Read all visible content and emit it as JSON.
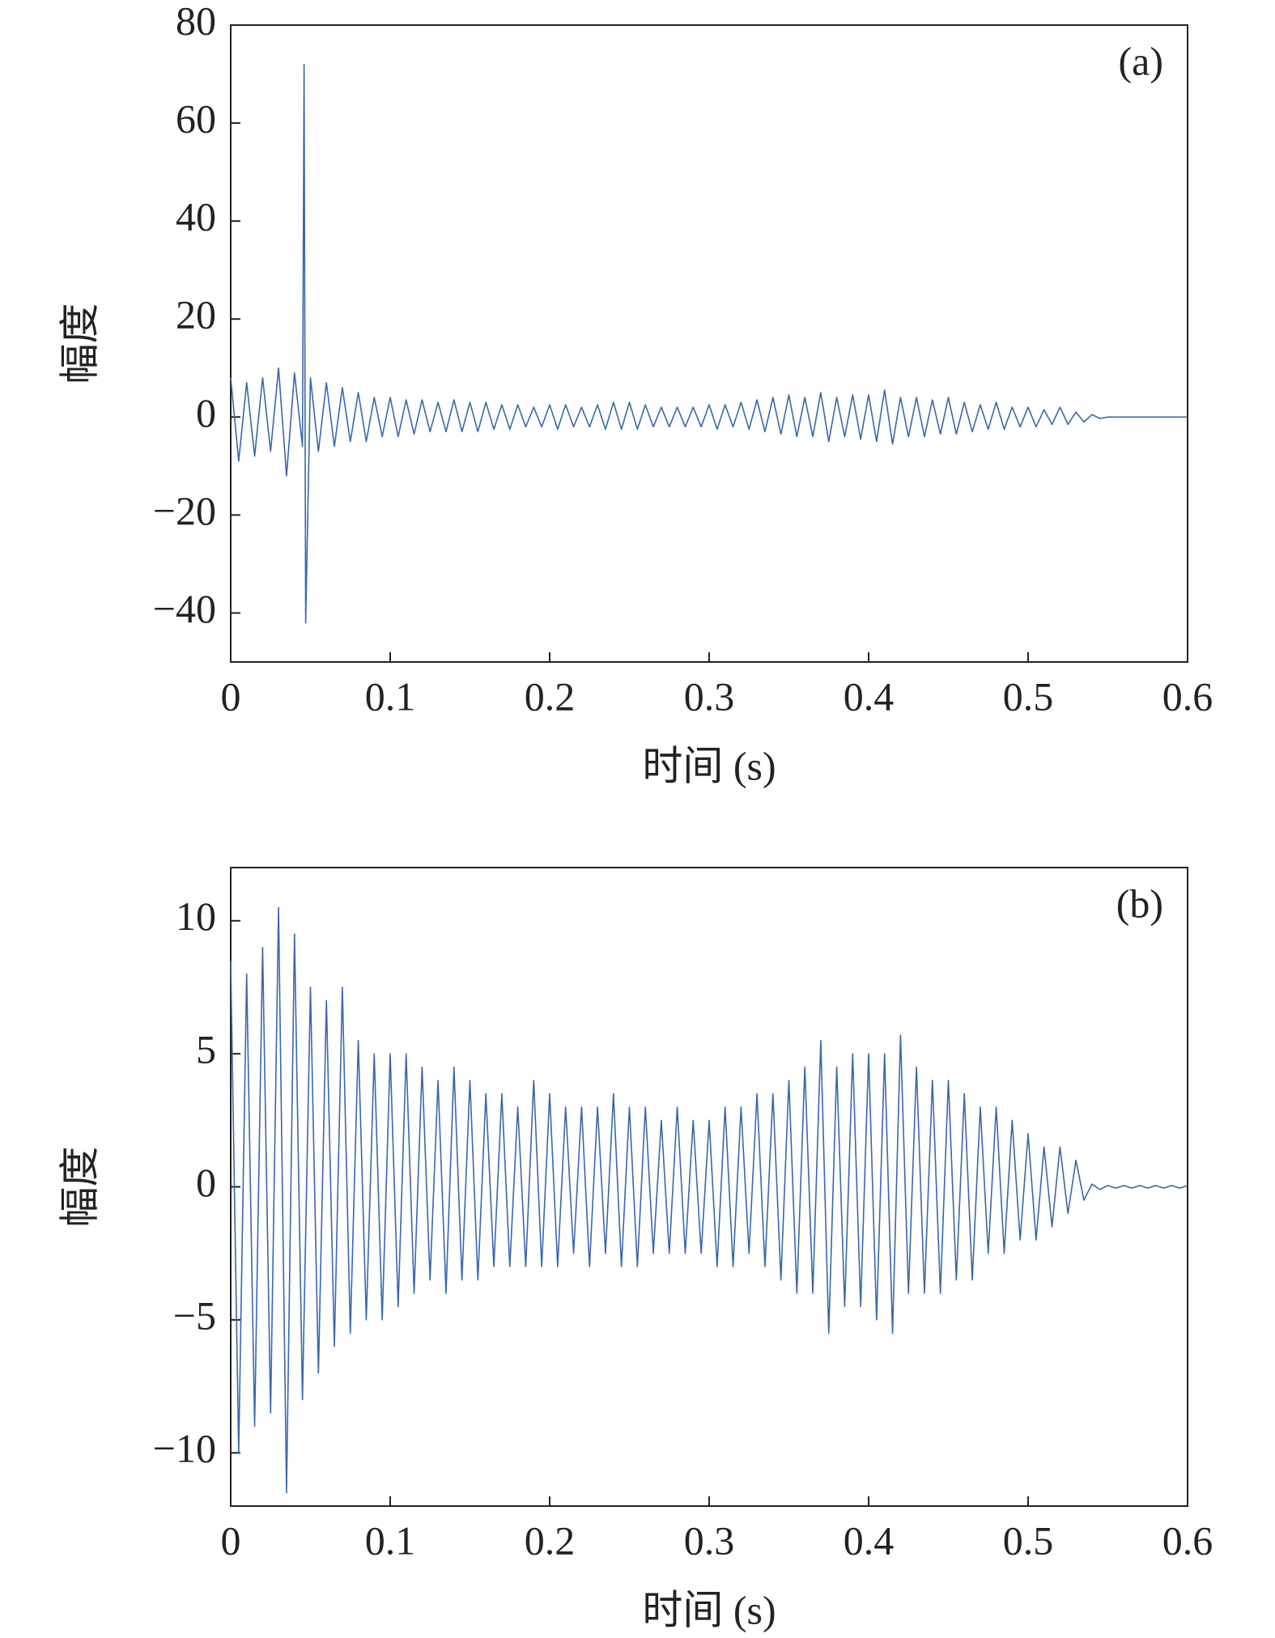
{
  "chart_data": [
    {
      "type": "line",
      "panel_label": "(a)",
      "x_label": "时间 (s)",
      "y_label": "幅度",
      "color": "#3a67ab",
      "xlim": [
        0,
        0.6
      ],
      "xticks": [
        0,
        0.1,
        0.2,
        0.3,
        0.4,
        0.5,
        0.6
      ],
      "ylim": [
        -50,
        80
      ],
      "yticks": [
        {
          "value": -40,
          "label": "−40"
        },
        {
          "value": -20,
          "label": "−20"
        },
        0,
        20,
        40,
        60,
        80
      ],
      "x": [
        0,
        0.005,
        0.01,
        0.015,
        0.02,
        0.025,
        0.03,
        0.035,
        0.04,
        0.045,
        0.046,
        0.047,
        0.05,
        0.055,
        0.06,
        0.065,
        0.07,
        0.075,
        0.08,
        0.085,
        0.09,
        0.095,
        0.1,
        0.105,
        0.11,
        0.115,
        0.12,
        0.125,
        0.13,
        0.135,
        0.14,
        0.145,
        0.15,
        0.155,
        0.16,
        0.165,
        0.17,
        0.175,
        0.18,
        0.185,
        0.19,
        0.195,
        0.2,
        0.205,
        0.21,
        0.215,
        0.22,
        0.225,
        0.23,
        0.235,
        0.24,
        0.245,
        0.25,
        0.255,
        0.26,
        0.265,
        0.27,
        0.275,
        0.28,
        0.285,
        0.29,
        0.295,
        0.3,
        0.305,
        0.31,
        0.315,
        0.32,
        0.325,
        0.33,
        0.335,
        0.34,
        0.345,
        0.35,
        0.355,
        0.36,
        0.365,
        0.37,
        0.375,
        0.38,
        0.385,
        0.39,
        0.395,
        0.4,
        0.405,
        0.41,
        0.415,
        0.42,
        0.425,
        0.43,
        0.435,
        0.44,
        0.445,
        0.45,
        0.455,
        0.46,
        0.465,
        0.47,
        0.475,
        0.48,
        0.485,
        0.49,
        0.495,
        0.5,
        0.505,
        0.51,
        0.515,
        0.52,
        0.525,
        0.53,
        0.535,
        0.54,
        0.545,
        0.55,
        0.555,
        0.56,
        0.565,
        0.57,
        0.575,
        0.58,
        0.585,
        0.59,
        0.595,
        0.6
      ],
      "values": [
        8,
        -9,
        7,
        -8,
        8,
        -7,
        10,
        -12,
        9,
        -6,
        72,
        -42,
        8,
        -7,
        7,
        -6,
        6,
        -5,
        5,
        -5,
        4,
        -4,
        4,
        -4,
        3.5,
        -3.5,
        3.5,
        -3,
        3,
        -3,
        3.5,
        -3,
        3,
        -3,
        3,
        -2.5,
        2.5,
        -2.5,
        2.5,
        -2,
        2,
        -2,
        2.5,
        -2.5,
        2.5,
        -2,
        2,
        -2,
        2.5,
        -2.5,
        3,
        -2.5,
        3,
        -2.5,
        2.5,
        -2,
        2,
        -2,
        2,
        -2,
        2,
        -2,
        2.5,
        -2.5,
        2.5,
        -2,
        3,
        -2.5,
        3.5,
        -3,
        4,
        -3.5,
        4.5,
        -4,
        4,
        -4,
        5,
        -5,
        4,
        -4,
        4.5,
        -4.5,
        4.5,
        -5,
        5.5,
        -5.5,
        4,
        -4,
        4,
        -4,
        3.5,
        -3.5,
        4,
        -3.5,
        3,
        -3,
        2.5,
        -2.5,
        3,
        -2.5,
        2,
        -2,
        2,
        -2,
        1.5,
        -1.5,
        2,
        -1.5,
        1,
        -1,
        0.5,
        -0.3,
        0,
        0,
        0,
        0,
        0,
        0,
        0,
        0,
        0,
        0,
        0
      ]
    },
    {
      "type": "line",
      "panel_label": "(b)",
      "x_label": "时间 (s)",
      "y_label": "幅度",
      "color": "#3a67ab",
      "xlim": [
        0,
        0.6
      ],
      "xticks": [
        0,
        0.1,
        0.2,
        0.3,
        0.4,
        0.5,
        0.6
      ],
      "ylim": [
        -12,
        12
      ],
      "yticks": [
        {
          "value": -10,
          "label": "−10"
        },
        {
          "value": -5,
          "label": "−5"
        },
        0,
        5,
        10
      ],
      "x": [
        0,
        0.005,
        0.01,
        0.015,
        0.02,
        0.025,
        0.03,
        0.035,
        0.04,
        0.045,
        0.05,
        0.055,
        0.06,
        0.065,
        0.07,
        0.075,
        0.08,
        0.085,
        0.09,
        0.095,
        0.1,
        0.105,
        0.11,
        0.115,
        0.12,
        0.125,
        0.13,
        0.135,
        0.14,
        0.145,
        0.15,
        0.155,
        0.16,
        0.165,
        0.17,
        0.175,
        0.18,
        0.185,
        0.19,
        0.195,
        0.2,
        0.205,
        0.21,
        0.215,
        0.22,
        0.225,
        0.23,
        0.235,
        0.24,
        0.245,
        0.25,
        0.255,
        0.26,
        0.265,
        0.27,
        0.275,
        0.28,
        0.285,
        0.29,
        0.295,
        0.3,
        0.305,
        0.31,
        0.315,
        0.32,
        0.325,
        0.33,
        0.335,
        0.34,
        0.345,
        0.35,
        0.355,
        0.36,
        0.365,
        0.37,
        0.375,
        0.38,
        0.385,
        0.39,
        0.395,
        0.4,
        0.405,
        0.41,
        0.415,
        0.42,
        0.425,
        0.43,
        0.435,
        0.44,
        0.445,
        0.45,
        0.455,
        0.46,
        0.465,
        0.47,
        0.475,
        0.48,
        0.485,
        0.49,
        0.495,
        0.5,
        0.505,
        0.51,
        0.515,
        0.52,
        0.525,
        0.53,
        0.535,
        0.54,
        0.545,
        0.55,
        0.555,
        0.56,
        0.565,
        0.57,
        0.575,
        0.58,
        0.585,
        0.59,
        0.595,
        0.6
      ],
      "values": [
        8.5,
        -10,
        8,
        -9,
        9,
        -8.5,
        10.5,
        -11.5,
        9.5,
        -8,
        7.5,
        -7,
        7,
        -6,
        7.5,
        -5.5,
        5.5,
        -5,
        5,
        -5,
        5,
        -4.5,
        5,
        -4,
        4.5,
        -3.5,
        4,
        -4,
        4.5,
        -3.5,
        4,
        -3.5,
        3.5,
        -3,
        3.5,
        -3,
        3,
        -3,
        4,
        -3,
        3.5,
        -3,
        3,
        -2.5,
        3,
        -3,
        3,
        -2.5,
        3.5,
        -3,
        3,
        -3,
        3,
        -2.5,
        2.5,
        -2.5,
        3,
        -2.5,
        2.5,
        -2.5,
        2.5,
        -3,
        3,
        -3,
        3,
        -2.5,
        3.5,
        -3,
        3.5,
        -3.5,
        4,
        -4,
        4.5,
        -4,
        5.5,
        -5.5,
        4.5,
        -4.5,
        5,
        -4.5,
        5,
        -5,
        5,
        -5.5,
        5.7,
        -4,
        4.5,
        -4,
        4,
        -4,
        4,
        -3.5,
        3.5,
        -3.5,
        3,
        -2.5,
        3,
        -2.5,
        2.5,
        -2,
        2,
        -2,
        1.5,
        -1.5,
        1.5,
        -1,
        1,
        -0.5,
        0.1,
        -0.1,
        0.05,
        -0.05,
        0.05,
        -0.05,
        0.05,
        -0.05,
        0.05,
        -0.05,
        0.05,
        -0.05,
        0.05
      ]
    }
  ]
}
